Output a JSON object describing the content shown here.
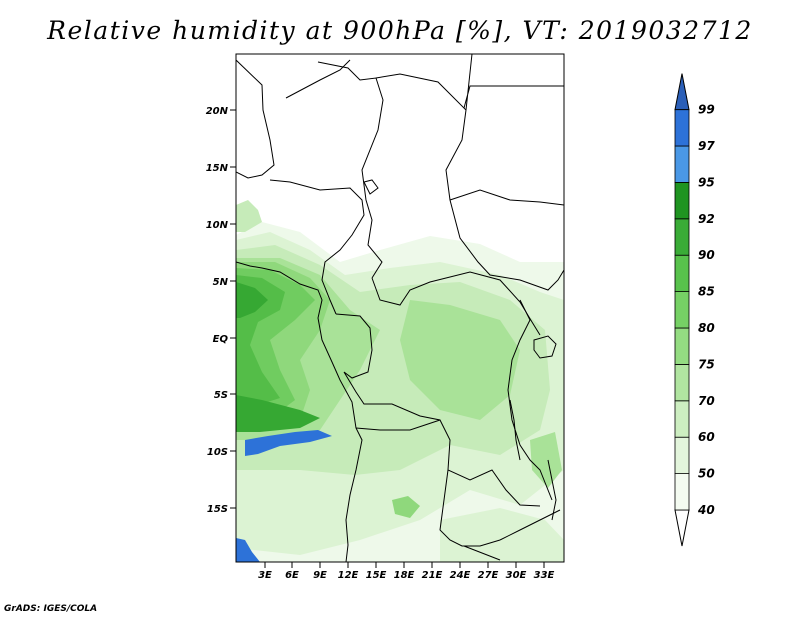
{
  "title": "Relative humidity at 900hPa [%], VT: 2019032712",
  "credit": "GrADS: IGES/COLA",
  "map": {
    "lat_labels": [
      "20N",
      "15N",
      "10N",
      "5N",
      "EQ",
      "5S",
      "10S",
      "15S"
    ],
    "lon_labels": [
      "3E",
      "6E",
      "9E",
      "12E",
      "15E",
      "18E",
      "21E",
      "24E",
      "27E",
      "30E",
      "33E"
    ],
    "extent": {
      "lon_min": 0,
      "lon_max": 35,
      "lat_min": -20,
      "lat_max": 25
    }
  },
  "colorbar": {
    "labels": [
      "40",
      "50",
      "60",
      "70",
      "75",
      "80",
      "85",
      "90",
      "92",
      "95",
      "97",
      "99"
    ],
    "colors": {
      "40": "#f4fbf1",
      "50": "#e3f5dc",
      "60": "#cdeec1",
      "70": "#b1e5a1",
      "75": "#94dc82",
      "80": "#76d165",
      "85": "#58c24c",
      "90": "#3aac37",
      "92": "#1f9421",
      "95": "#4a98e6",
      "97": "#2d72d8",
      "99": "#2b5fb8"
    }
  }
}
